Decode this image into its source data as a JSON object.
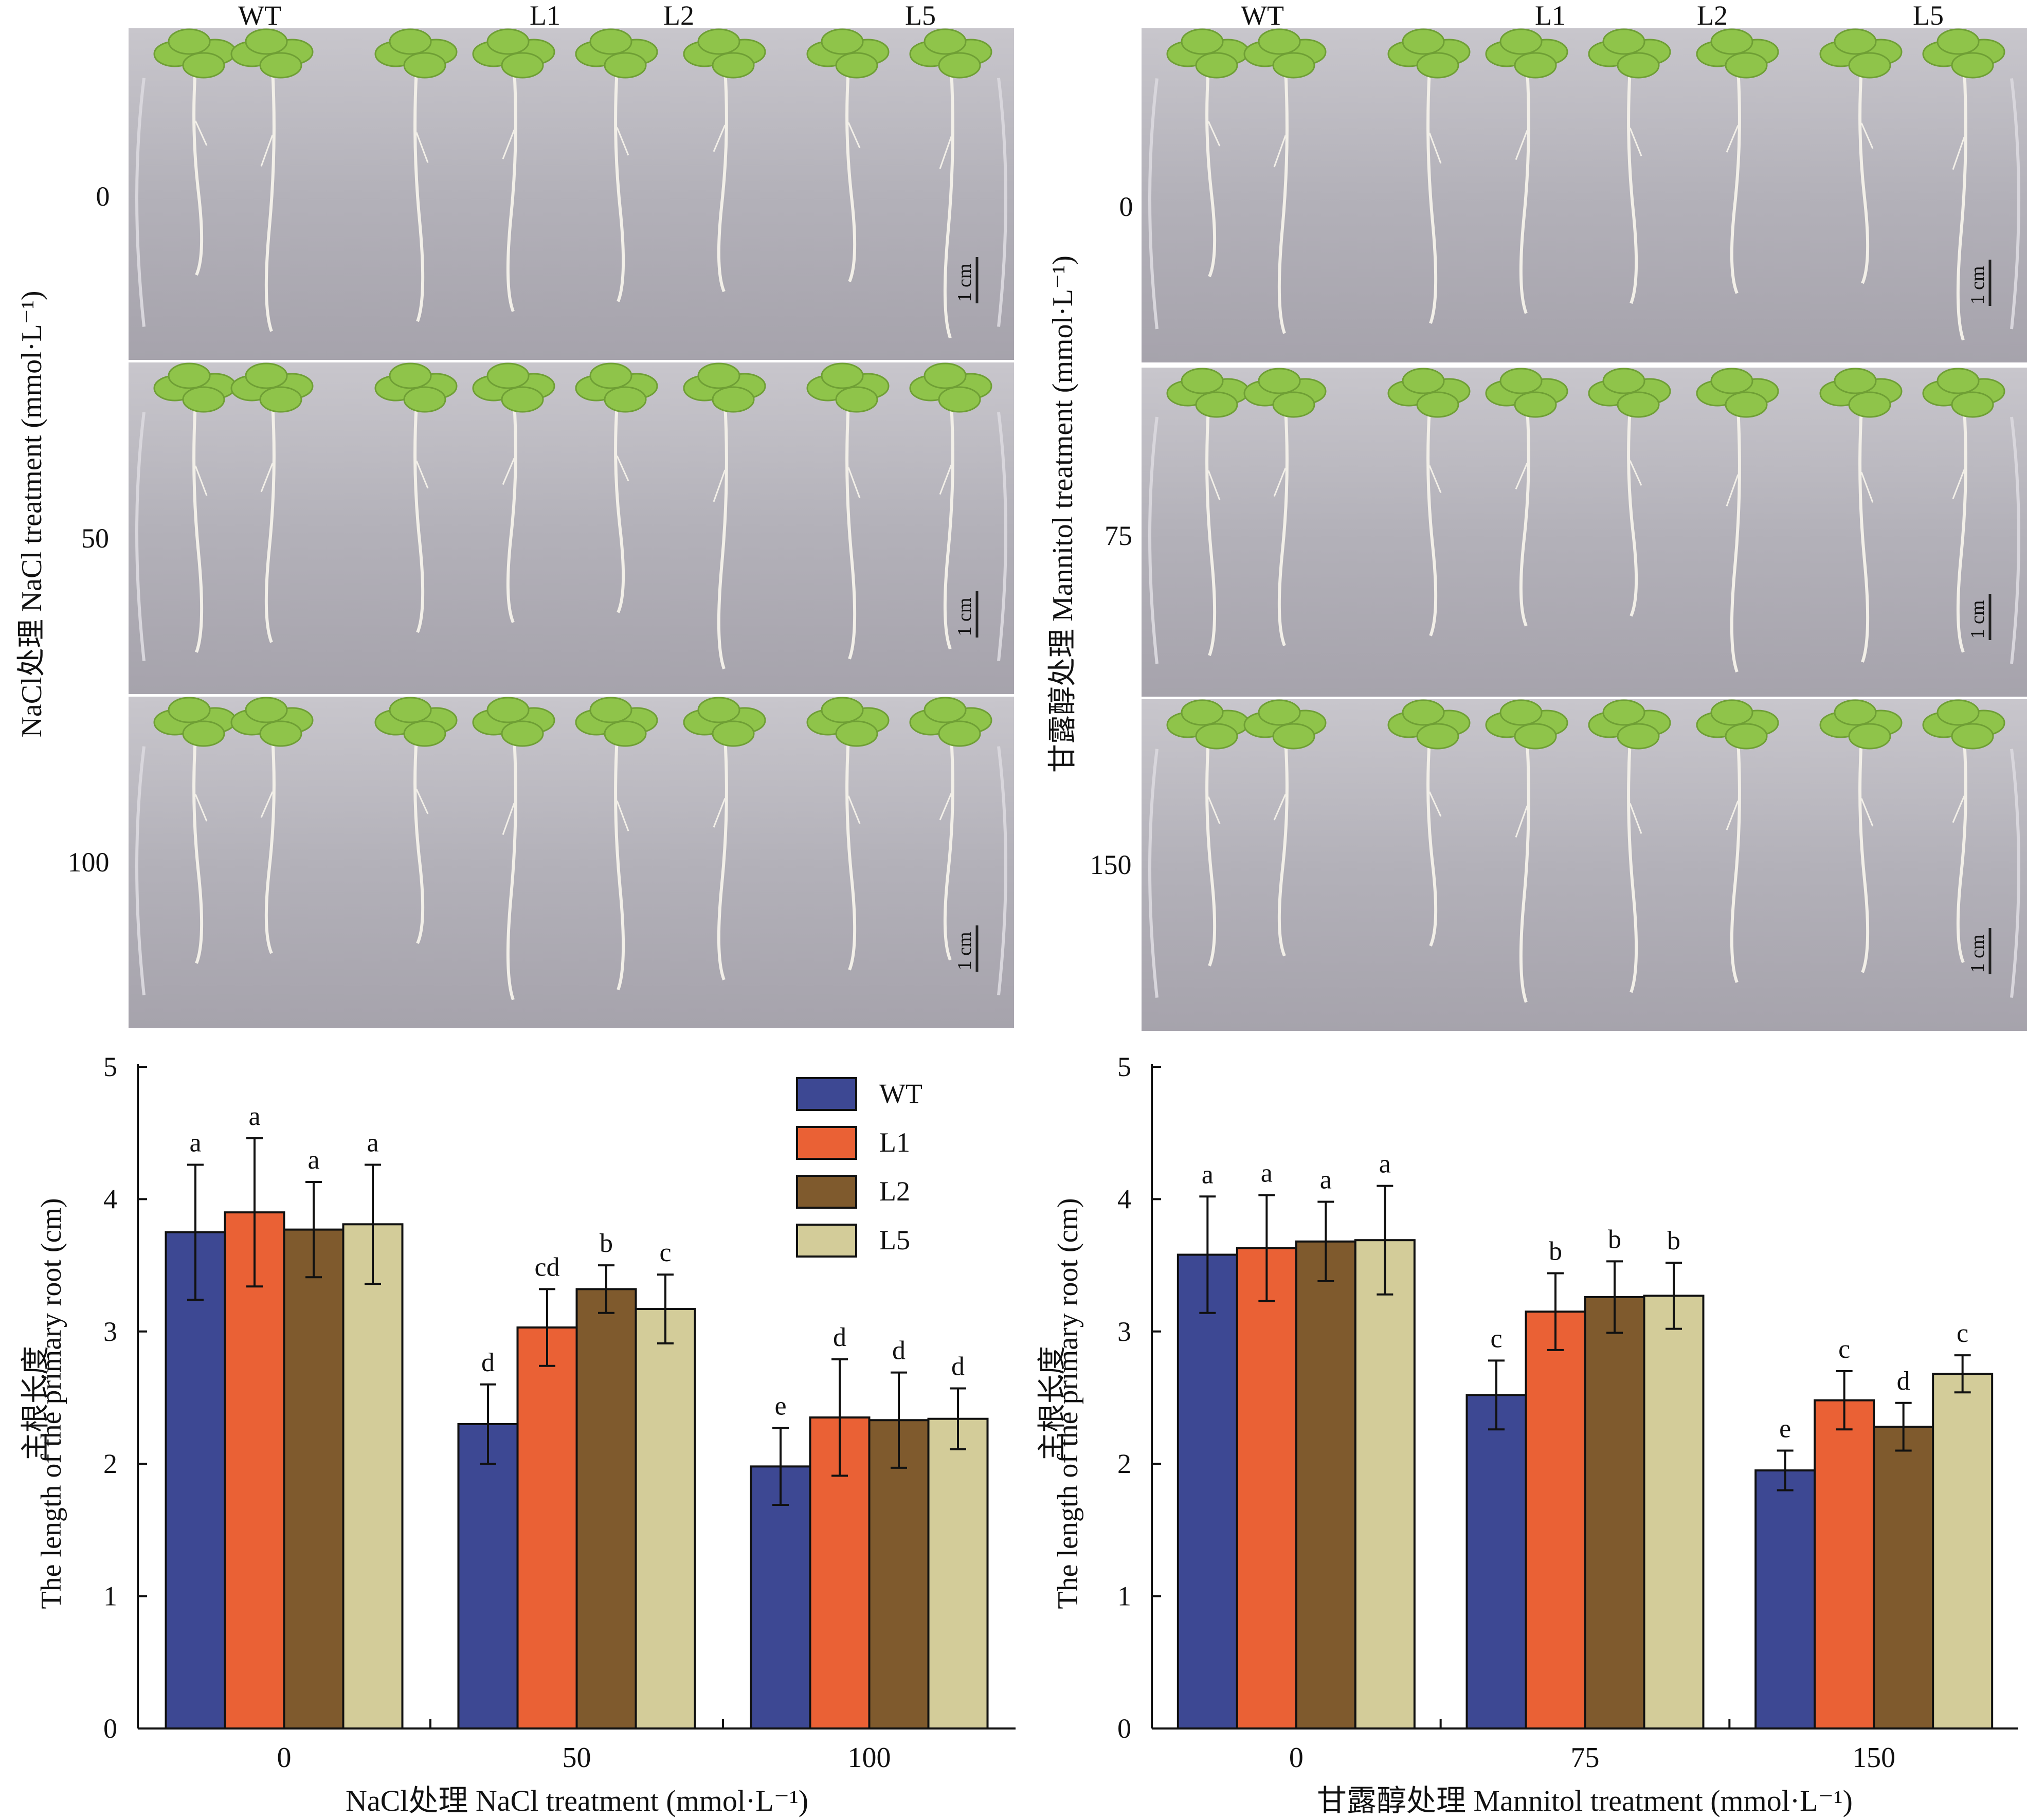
{
  "left_panel": {
    "genotype_labels": [
      "WT",
      "L1",
      "L2",
      "L5"
    ],
    "row_labels": [
      "0",
      "50",
      "100"
    ],
    "side_label": "NaCl处理 NaCl treatment (mmol·L⁻¹)",
    "scale_bar": "1 cm"
  },
  "right_panel": {
    "genotype_labels": [
      "WT",
      "L1",
      "L2",
      "L5"
    ],
    "row_labels": [
      "0",
      "75",
      "150"
    ],
    "side_label": "甘露醇处理 Mannitol treatment (mmol·L⁻¹)",
    "scale_bar": "1 cm"
  },
  "colors": {
    "WT": "#3D4893",
    "L1": "#EA6135",
    "L2": "#7F5A2D",
    "L5": "#D3CC99",
    "plate_bg": "#b6b4bc",
    "leaf": "#8fc44a",
    "root": "#f2efe8"
  },
  "chart_data": [
    {
      "type": "bar",
      "categories": [
        "0",
        "50",
        "100"
      ],
      "xlabel": "NaCl处理 NaCl treatment (mmol·L⁻¹)",
      "ylabel_cn": "主根长度",
      "ylabel": "The length of the primary root (cm)",
      "ylim": [
        0,
        5
      ],
      "yticks": [
        "0",
        "1",
        "2",
        "3",
        "4",
        "5"
      ],
      "legend_position": "top-right",
      "series": [
        {
          "name": "WT",
          "values": [
            3.75,
            2.3,
            1.98
          ],
          "errors": [
            0.51,
            0.3,
            0.29
          ],
          "letters": [
            "a",
            "d",
            "e"
          ]
        },
        {
          "name": "L1",
          "values": [
            3.9,
            3.03,
            2.35
          ],
          "errors": [
            0.56,
            0.29,
            0.44
          ],
          "letters": [
            "a",
            "cd",
            "d"
          ]
        },
        {
          "name": "L2",
          "values": [
            3.77,
            3.32,
            2.33
          ],
          "errors": [
            0.36,
            0.18,
            0.36
          ],
          "letters": [
            "a",
            "b",
            "d"
          ]
        },
        {
          "name": "L5",
          "values": [
            3.81,
            3.17,
            2.34
          ],
          "errors": [
            0.45,
            0.26,
            0.23
          ],
          "letters": [
            "a",
            "c",
            "d"
          ]
        }
      ]
    },
    {
      "type": "bar",
      "categories": [
        "0",
        "75",
        "150"
      ],
      "xlabel": "甘露醇处理 Mannitol treatment (mmol·L⁻¹)",
      "ylabel_cn": "主根长度",
      "ylabel": "The length of the primary root (cm)",
      "ylim": [
        0,
        5
      ],
      "yticks": [
        "0",
        "1",
        "2",
        "3",
        "4",
        "5"
      ],
      "legend_position": "none",
      "series": [
        {
          "name": "WT",
          "values": [
            3.58,
            2.52,
            1.95
          ],
          "errors": [
            0.44,
            0.26,
            0.15
          ],
          "letters": [
            "a",
            "c",
            "e"
          ]
        },
        {
          "name": "L1",
          "values": [
            3.63,
            3.15,
            2.48
          ],
          "errors": [
            0.4,
            0.29,
            0.22
          ],
          "letters": [
            "a",
            "b",
            "c"
          ]
        },
        {
          "name": "L2",
          "values": [
            3.68,
            3.26,
            2.28
          ],
          "errors": [
            0.3,
            0.27,
            0.18
          ],
          "letters": [
            "a",
            "b",
            "d"
          ]
        },
        {
          "name": "L5",
          "values": [
            3.69,
            3.27,
            2.68
          ],
          "errors": [
            0.41,
            0.25,
            0.14
          ],
          "letters": [
            "a",
            "b",
            "c"
          ]
        }
      ]
    }
  ]
}
